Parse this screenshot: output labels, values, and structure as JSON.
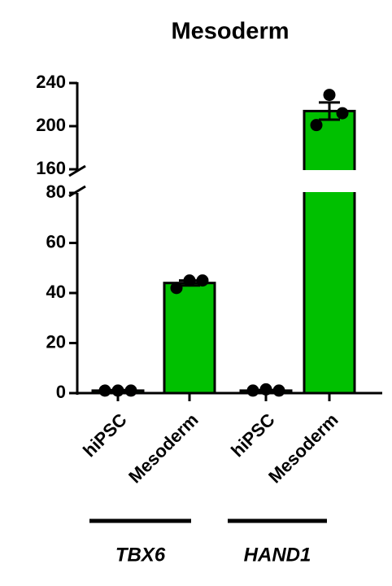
{
  "chart_data": {
    "type": "bar",
    "title": "Mesoderm",
    "categories": [
      "hiPSC",
      "Mesoderm",
      "hiPSC",
      "Mesoderm"
    ],
    "groups": [
      "TBX6",
      "HAND1"
    ],
    "values": [
      1,
      44,
      1,
      214
    ],
    "errors": [
      0.2,
      1,
      0.2,
      8
    ],
    "points": [
      [
        1,
        1,
        1
      ],
      [
        42,
        45,
        45
      ],
      [
        1,
        1.5,
        1
      ],
      [
        201,
        229,
        212
      ]
    ],
    "color": "#00c000",
    "ylim": [
      0,
      240
    ],
    "axis_break": [
      80,
      160
    ],
    "yticks": [
      0,
      20,
      40,
      60,
      80,
      160,
      200,
      240
    ]
  }
}
